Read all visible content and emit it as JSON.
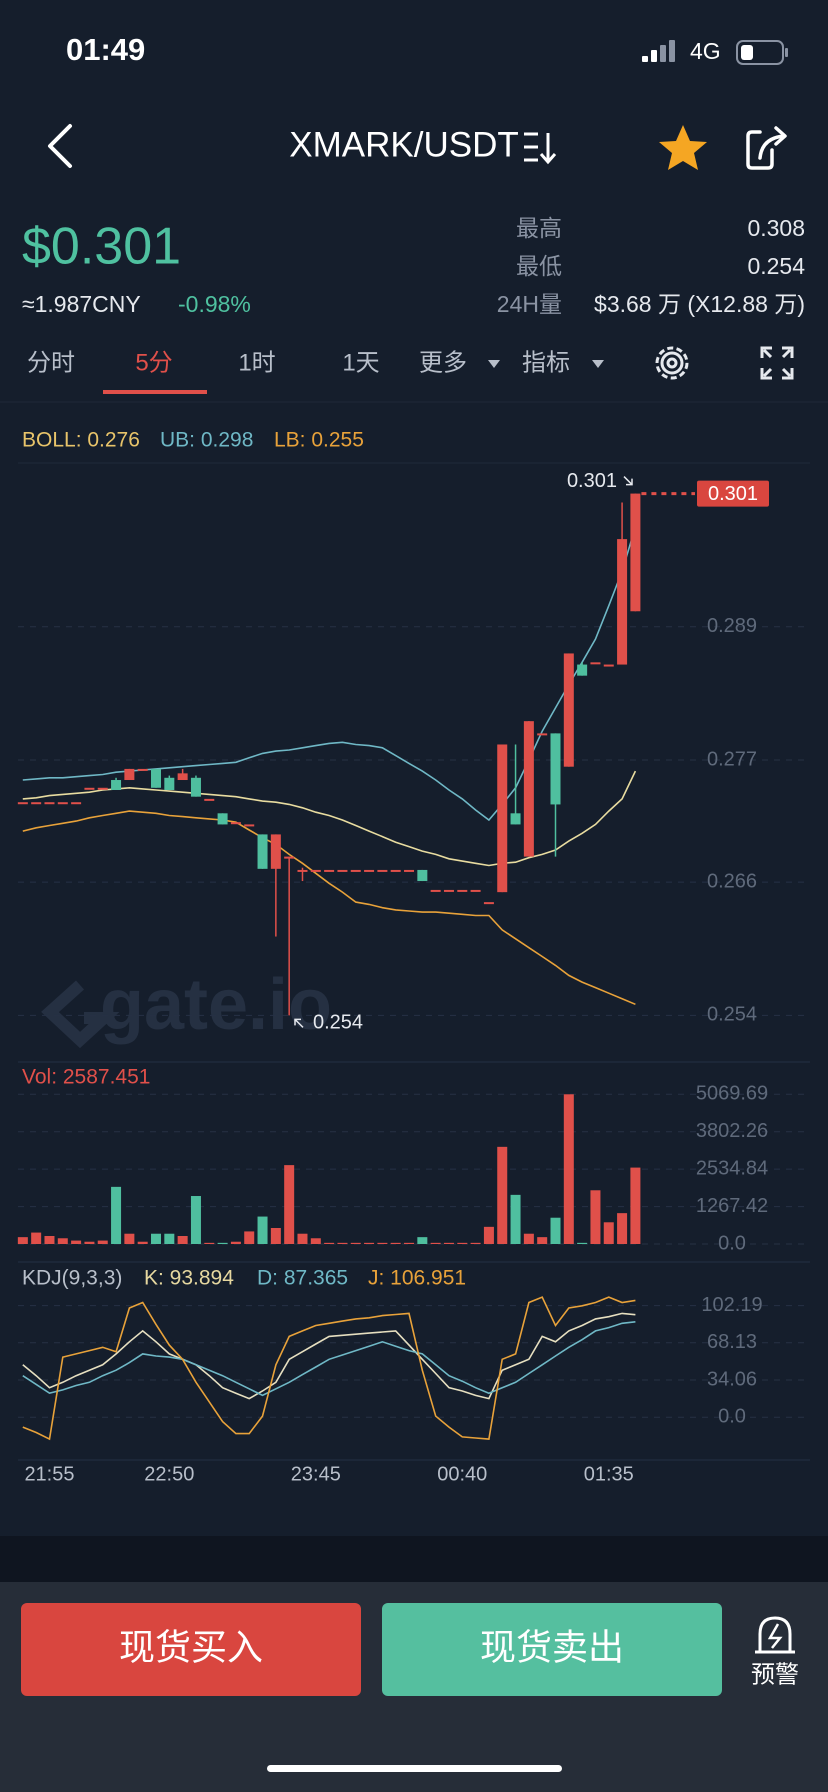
{
  "status_bar": {
    "time": "01:49",
    "network": "4G"
  },
  "header": {
    "title": "XMARK/USDT"
  },
  "ticker": {
    "price": "$0.301",
    "cny": "≈1.987CNY",
    "change": "-0.98%",
    "stats": [
      {
        "label": "最高",
        "value": "0.308"
      },
      {
        "label": "最低",
        "value": "0.254"
      },
      {
        "label": "24H量",
        "value": "$3.68 万 (X12.88 万)"
      }
    ]
  },
  "tabs": [
    "分时",
    "5分",
    "1时",
    "1天",
    "更多",
    "指标"
  ],
  "chart_data": [
    {
      "type": "candlestick",
      "legend": [
        "BOLL: 0.276",
        "UB: 0.298",
        "LB: 0.255"
      ],
      "watermark": "gate.io",
      "up_color": "#e0504a",
      "down_color": "#4fbf9f",
      "candles": [
        [
          0.2732,
          0.2732,
          0.2732,
          0.2732
        ],
        [
          0.2732,
          0.2732,
          0.2732,
          0.2732
        ],
        [
          0.2732,
          0.2732,
          0.2732,
          0.2732
        ],
        [
          0.2732,
          0.2732,
          0.2732,
          0.2732
        ],
        [
          0.2732,
          0.2732,
          0.2732,
          0.2732
        ],
        [
          0.2745,
          0.2745,
          0.2745,
          0.2745
        ],
        [
          0.2745,
          0.2745,
          0.2745,
          0.2745
        ],
        [
          0.2752,
          0.2754,
          0.2743,
          0.2743
        ],
        [
          0.2752,
          0.2762,
          0.2752,
          0.2762
        ],
        [
          0.2762,
          0.2762,
          0.2762,
          0.2762
        ],
        [
          0.2762,
          0.2762,
          0.2745,
          0.2745
        ],
        [
          0.2754,
          0.2756,
          0.2743,
          0.2743
        ],
        [
          0.2752,
          0.2762,
          0.2752,
          0.2758
        ],
        [
          0.2754,
          0.2756,
          0.2737,
          0.2737
        ],
        [
          0.2735,
          0.2735,
          0.2735,
          0.2735
        ],
        [
          0.2722,
          0.2722,
          0.2712,
          0.2712
        ],
        [
          0.2714,
          0.2714,
          0.2714,
          0.2714
        ],
        [
          0.2712,
          0.2712,
          0.2712,
          0.2712
        ],
        [
          0.2703,
          0.2703,
          0.2672,
          0.2672
        ],
        [
          0.2672,
          0.2703,
          0.2611,
          0.2703
        ],
        [
          0.2683,
          0.2683,
          0.254,
          0.2683
        ],
        [
          0.2671,
          0.2673,
          0.2661,
          0.2671
        ],
        [
          0.2671,
          0.2671,
          0.2671,
          0.2671
        ],
        [
          0.2671,
          0.2671,
          0.2671,
          0.2671
        ],
        [
          0.2671,
          0.2671,
          0.2671,
          0.2671
        ],
        [
          0.2671,
          0.2671,
          0.2671,
          0.2671
        ],
        [
          0.2671,
          0.2671,
          0.2671,
          0.2671
        ],
        [
          0.2671,
          0.2671,
          0.2671,
          0.2671
        ],
        [
          0.2671,
          0.2671,
          0.2671,
          0.2671
        ],
        [
          0.2671,
          0.2671,
          0.2671,
          0.2671
        ],
        [
          0.2671,
          0.2671,
          0.2661,
          0.2661
        ],
        [
          0.2653,
          0.2653,
          0.2653,
          0.2653
        ],
        [
          0.2653,
          0.2653,
          0.2653,
          0.2653
        ],
        [
          0.2653,
          0.2653,
          0.2653,
          0.2653
        ],
        [
          0.2653,
          0.2653,
          0.2653,
          0.2653
        ],
        [
          0.2642,
          0.2642,
          0.2642,
          0.2642
        ],
        [
          0.2651,
          0.2784,
          0.2651,
          0.2784
        ],
        [
          0.2722,
          0.2784,
          0.2712,
          0.2712
        ],
        [
          0.2683,
          0.2805,
          0.2683,
          0.2805
        ],
        [
          0.2794,
          0.2794,
          0.2794,
          0.2794
        ],
        [
          0.2794,
          0.2794,
          0.2683,
          0.273
        ],
        [
          0.2764,
          0.2866,
          0.2764,
          0.2866
        ],
        [
          0.2856,
          0.2858,
          0.2846,
          0.2846
        ],
        [
          0.2858,
          0.2858,
          0.2858,
          0.2858
        ],
        [
          0.2856,
          0.2856,
          0.2856,
          0.2856
        ],
        [
          0.2856,
          0.3002,
          0.2856,
          0.2969
        ],
        [
          0.2904,
          0.301,
          0.2904,
          0.301
        ]
      ],
      "lines": [
        {
          "color": "#6fb8c6",
          "values": [
            0.2752,
            0.2753,
            0.2754,
            0.2754,
            0.2755,
            0.2756,
            0.2757,
            0.2759,
            0.276,
            0.2761,
            0.2762,
            0.2763,
            0.2764,
            0.2765,
            0.2766,
            0.2767,
            0.2768,
            0.2772,
            0.2776,
            0.2778,
            0.2779,
            0.2781,
            0.2783,
            0.2785,
            0.2786,
            0.2784,
            0.2783,
            0.2781,
            0.2774,
            0.2767,
            0.276,
            0.2752,
            0.2743,
            0.2735,
            0.2725,
            0.2716,
            0.273,
            0.2745,
            0.277,
            0.2796,
            0.2817,
            0.2838,
            0.2858,
            0.2879,
            0.2909,
            0.294,
            0.298
          ]
        },
        {
          "color": "#e8dca0",
          "values": [
            0.2735,
            0.2736,
            0.2738,
            0.2739,
            0.274,
            0.2741,
            0.2743,
            0.2744,
            0.2745,
            0.2744,
            0.2743,
            0.2742,
            0.2741,
            0.274,
            0.2739,
            0.2738,
            0.2737,
            0.2735,
            0.2733,
            0.2732,
            0.273,
            0.2727,
            0.2723,
            0.272,
            0.2716,
            0.2711,
            0.2706,
            0.2701,
            0.2696,
            0.2692,
            0.2688,
            0.2685,
            0.2681,
            0.2679,
            0.2677,
            0.2675,
            0.2677,
            0.2678,
            0.2682,
            0.2685,
            0.2689,
            0.2697,
            0.2704,
            0.2712,
            0.2724,
            0.2735,
            0.276
          ]
        },
        {
          "color": "#e8a23a",
          "values": [
            0.2706,
            0.2709,
            0.2711,
            0.2713,
            0.2715,
            0.2718,
            0.272,
            0.2722,
            0.2724,
            0.2723,
            0.2722,
            0.272,
            0.2719,
            0.2718,
            0.2717,
            0.2716,
            0.2714,
            0.2707,
            0.27,
            0.2694,
            0.2685,
            0.2677,
            0.2668,
            0.2659,
            0.2651,
            0.2642,
            0.264,
            0.2637,
            0.2635,
            0.2634,
            0.2633,
            0.2633,
            0.2632,
            0.2631,
            0.263,
            0.263,
            0.2617,
            0.2609,
            0.2601,
            0.2593,
            0.2585,
            0.2576,
            0.257,
            0.2565,
            0.256,
            0.2555,
            0.255
          ]
        }
      ],
      "high_label": 0.301,
      "low_label": 0.254,
      "last_price": 0.301,
      "ylim": [
        0.2498,
        0.3038
      ],
      "yticks": [
        0.289,
        0.277,
        0.266,
        0.254
      ],
      "grid": true
    },
    {
      "type": "bar",
      "legend": [
        "Vol: 2587.451"
      ],
      "values": [
        232,
        387,
        271,
        194,
        116,
        77,
        116,
        1935,
        348,
        77,
        348,
        348,
        271,
        1625,
        39,
        39,
        77,
        426,
        929,
        542,
        2671,
        348,
        194,
        39,
        39,
        39,
        39,
        39,
        39,
        39,
        232,
        39,
        39,
        39,
        39,
        581,
        3290,
        1664,
        348,
        232,
        890,
        5069.69,
        39,
        1819,
        735,
        1045,
        2587.451
      ],
      "ylim": [
        0,
        5960
      ],
      "yticks": [
        5069.69,
        3802.26,
        2534.84,
        1267.42,
        {
          "value": 0,
          "label": "0.0"
        }
      ],
      "grid": true
    },
    {
      "type": "line",
      "legend": [
        "KDJ(9,3,3)",
        "K: 93.894",
        "D: 87.365",
        "J: 106.951"
      ],
      "series": [
        {
          "color": "#e6dfc0",
          "values": [
            48,
            38,
            27,
            32,
            38,
            43,
            48,
            58,
            69,
            79,
            69,
            58,
            53,
            48,
            38,
            27,
            22,
            17,
            24,
            32,
            53,
            60,
            67,
            74,
            75,
            76,
            77,
            78,
            79,
            66,
            53,
            40,
            27,
            24,
            20,
            17,
            43,
            48,
            53,
            74,
            69,
            79,
            84,
            90,
            92,
            95,
            93.894
          ]
        },
        {
          "color": "#6fb8c6",
          "values": [
            38,
            30,
            22,
            25,
            29,
            32,
            38,
            43,
            50,
            58,
            56,
            55,
            53,
            48,
            43,
            38,
            32,
            26,
            20,
            26,
            32,
            39,
            46,
            53,
            57,
            61,
            65,
            69,
            65,
            61,
            58,
            48,
            38,
            33,
            27,
            22,
            27,
            32,
            40,
            48,
            56,
            64,
            71,
            79,
            82,
            86,
            87.365
          ]
        },
        {
          "color": "#e8a23a",
          "values": [
            -9,
            -14,
            -20,
            55,
            58,
            61,
            64,
            60,
            100,
            105,
            85,
            66,
            53,
            32,
            14,
            -4,
            -15,
            -15,
            1,
            48,
            74,
            79,
            84,
            86,
            88,
            90,
            91,
            93,
            94,
            95,
            43,
            1,
            -9,
            -18,
            -19,
            -20,
            53,
            58,
            105,
            110,
            84,
            100,
            102,
            105,
            110,
            105,
            106.951
          ]
        }
      ],
      "ylim": [
        -35.5,
        136.6
      ],
      "yticks": [
        102.19,
        68.13,
        34.06,
        {
          "value": 0,
          "label": "0.0"
        }
      ],
      "xticks": [
        {
          "value": 2,
          "label": "21:55"
        },
        {
          "value": 11,
          "label": "22:50"
        },
        {
          "value": 22,
          "label": "23:45"
        },
        {
          "value": 33,
          "label": "00:40"
        },
        {
          "value": 44,
          "label": "01:35"
        }
      ],
      "grid": true
    }
  ],
  "buttons": [
    "现货买入",
    "现货卖出"
  ],
  "alert": "预警"
}
